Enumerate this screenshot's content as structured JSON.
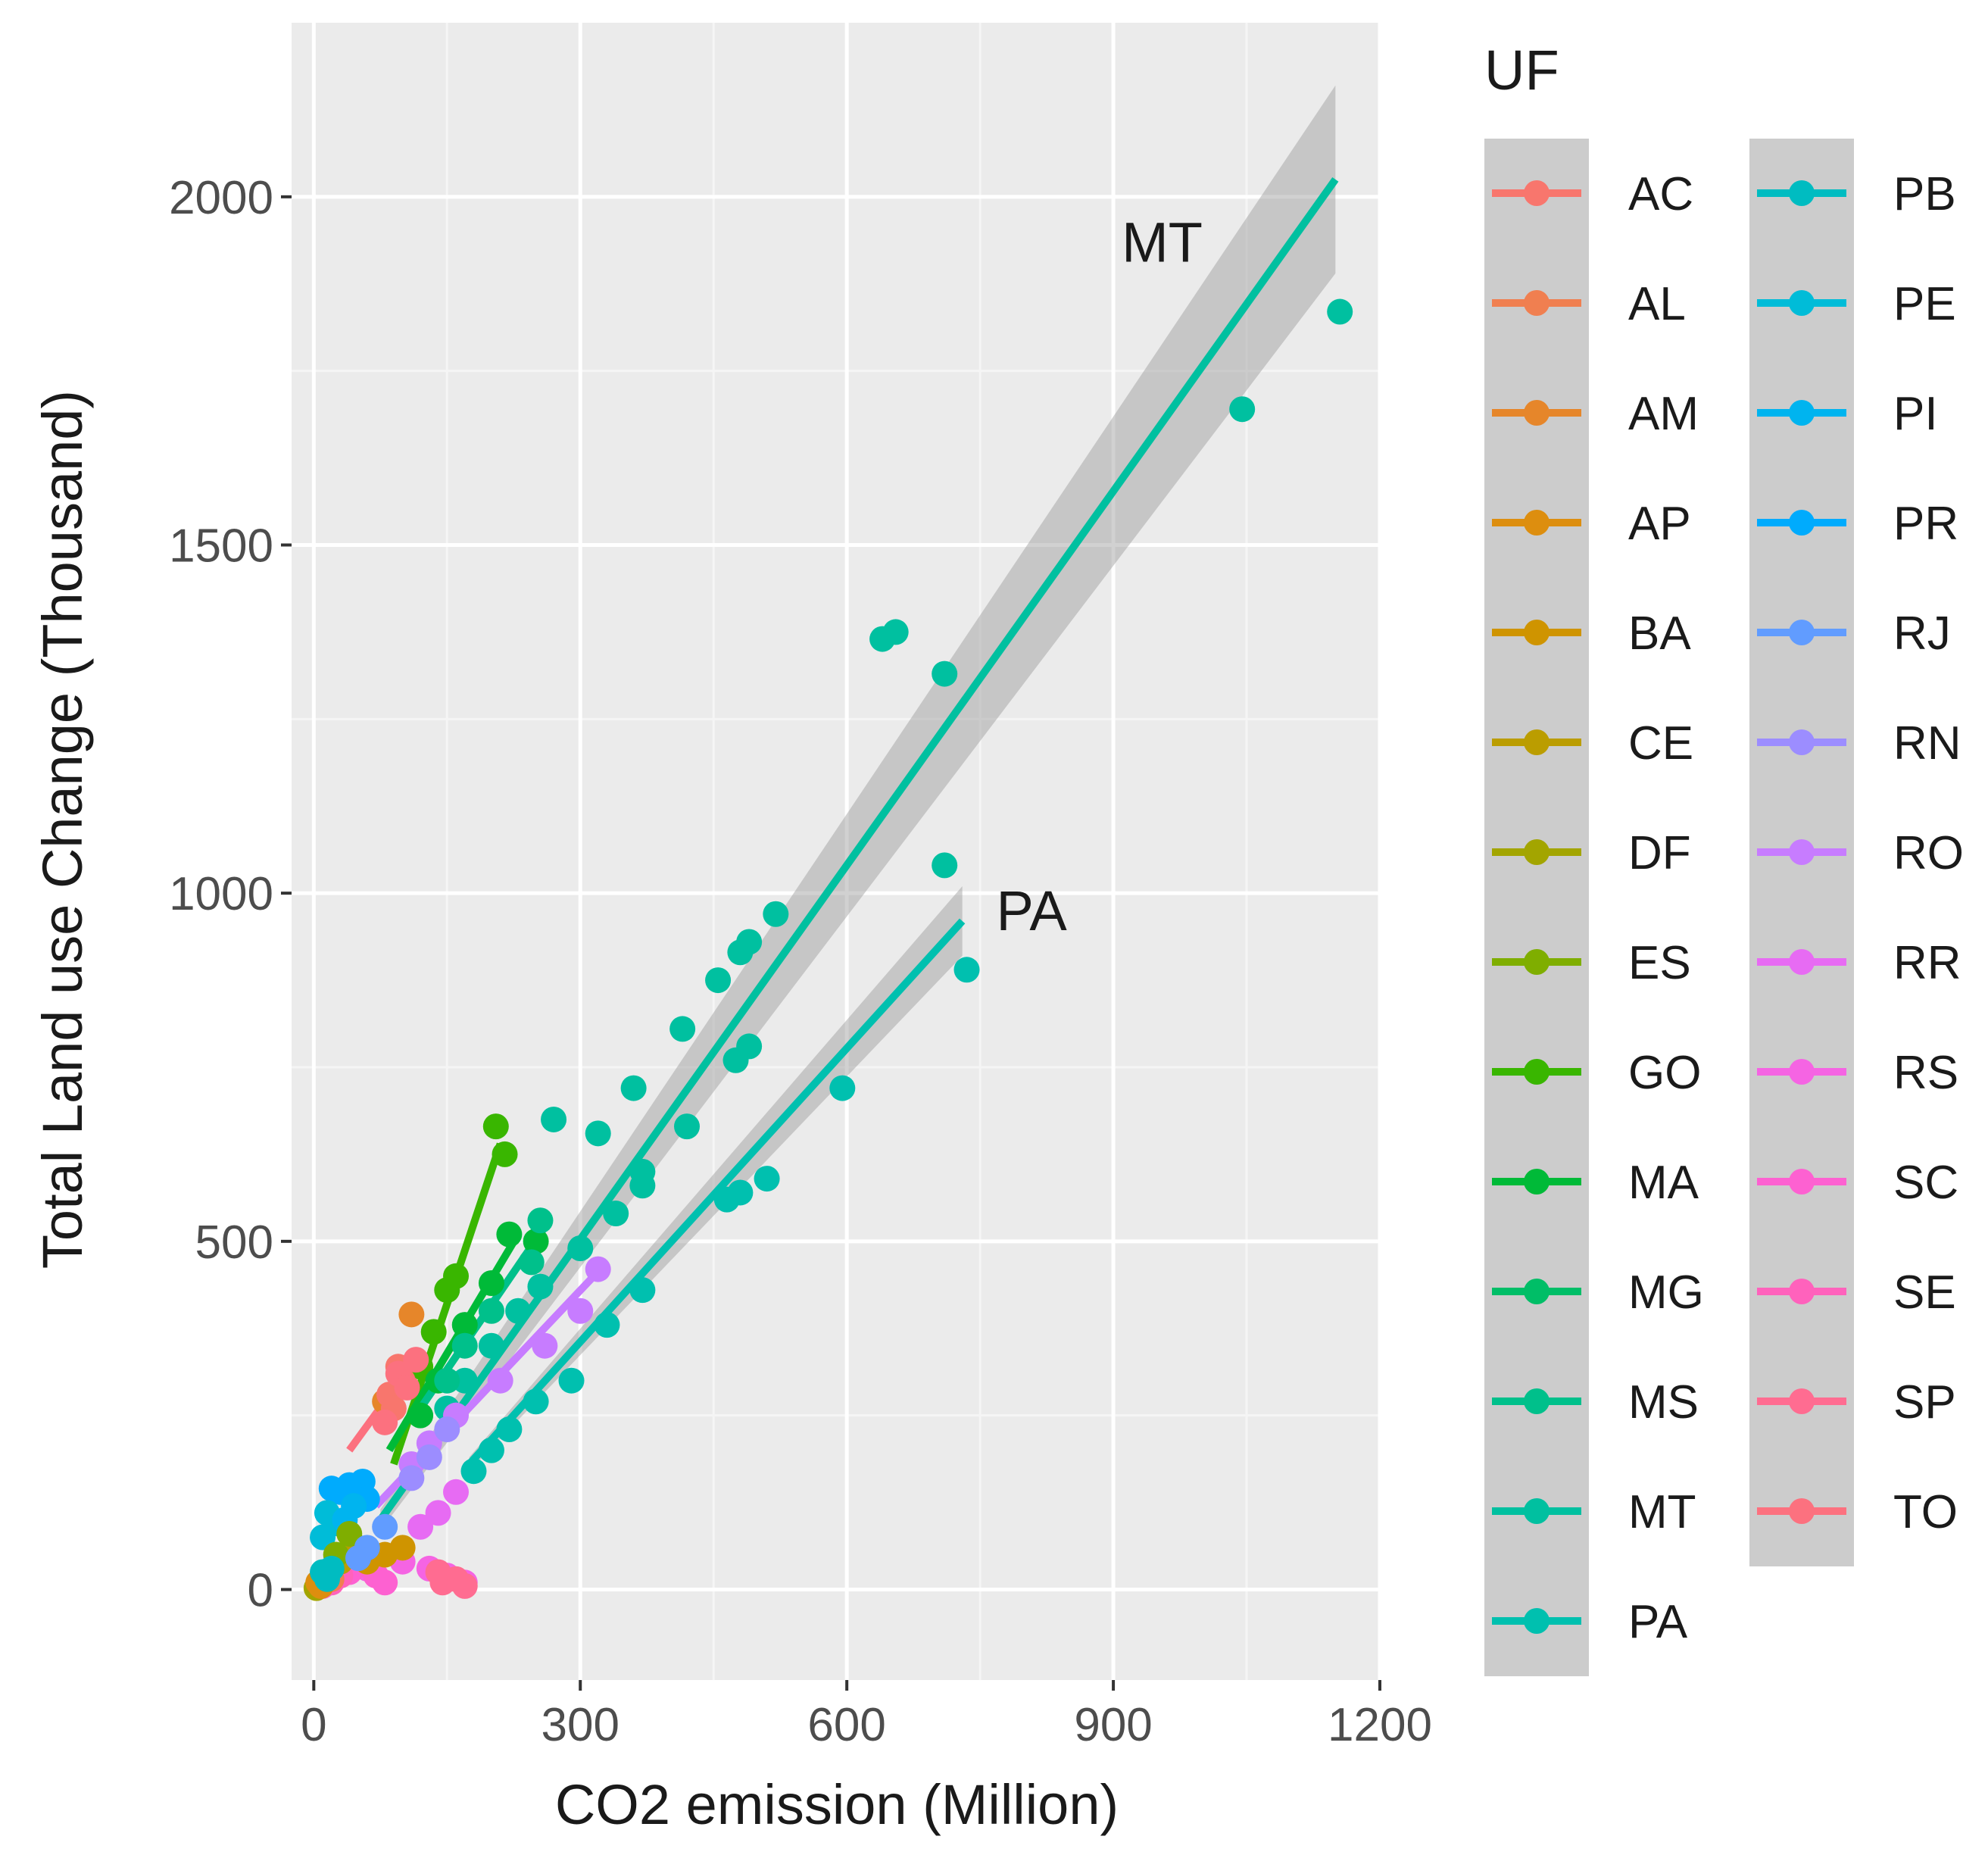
{
  "chart_data": {
    "type": "scatter",
    "title": "",
    "xlabel": "CO2 emission (Million)",
    "ylabel": "Total Land use Change (Thousand)",
    "xlim": [
      -25,
      1200
    ],
    "ylim": [
      -130,
      2250
    ],
    "xticks": [
      0,
      300,
      600,
      900,
      1200
    ],
    "yticks": [
      0,
      500,
      1000,
      1500,
      2000
    ],
    "grid": true,
    "legend": {
      "title": "UF",
      "placement": "right",
      "entries": [
        {
          "name": "AC",
          "color": "#F8766D"
        },
        {
          "name": "AL",
          "color": "#F07F50"
        },
        {
          "name": "AM",
          "color": "#E6862A"
        },
        {
          "name": "AP",
          "color": "#DD8E0F"
        },
        {
          "name": "BA",
          "color": "#CF9400"
        },
        {
          "name": "CE",
          "color": "#BB9D00"
        },
        {
          "name": "DF",
          "color": "#A3A500"
        },
        {
          "name": "ES",
          "color": "#7FAE00"
        },
        {
          "name": "GO",
          "color": "#39B600"
        },
        {
          "name": "MA",
          "color": "#00BA38"
        },
        {
          "name": "MG",
          "color": "#00BE67"
        },
        {
          "name": "MS",
          "color": "#00C08B"
        },
        {
          "name": "MT",
          "color": "#00C0A0"
        },
        {
          "name": "PA",
          "color": "#00C0AF"
        },
        {
          "name": "PB",
          "color": "#00BCC1"
        },
        {
          "name": "PE",
          "color": "#00BCD8"
        },
        {
          "name": "PI",
          "color": "#00B4EF"
        },
        {
          "name": "PR",
          "color": "#00ABFD"
        },
        {
          "name": "RJ",
          "color": "#619CFF"
        },
        {
          "name": "RN",
          "color": "#9C8DFF"
        },
        {
          "name": "RO",
          "color": "#C77CFF"
        },
        {
          "name": "RR",
          "color": "#E76BF3"
        },
        {
          "name": "RS",
          "color": "#F564E3"
        },
        {
          "name": "SC",
          "color": "#FD61D1"
        },
        {
          "name": "SE",
          "color": "#FF62BC"
        },
        {
          "name": "SP",
          "color": "#FF6C91"
        },
        {
          "name": "TO",
          "color": "#FC717F"
        }
      ]
    },
    "annotations": [
      {
        "text": "MT",
        "x": 955,
        "y": 1935
      },
      {
        "text": "PA",
        "x": 808,
        "y": 975
      }
    ],
    "regression": [
      {
        "series": "MT",
        "x": [
          75,
          1150
        ],
        "y": [
          100,
          2025
        ],
        "band_half_width": [
          15,
          135
        ]
      },
      {
        "series": "PA",
        "x": [
          175,
          730
        ],
        "y": [
          180,
          960
        ],
        "band_half_width": [
          10,
          50
        ]
      },
      {
        "series": "GO",
        "x": [
          90,
          210
        ],
        "y": [
          180,
          640
        ]
      },
      {
        "series": "MA",
        "x": [
          85,
          230
        ],
        "y": [
          200,
          510
        ]
      },
      {
        "series": "MS",
        "x": [
          120,
          265
        ],
        "y": [
          260,
          530
        ]
      },
      {
        "series": "RO",
        "x": [
          70,
          330
        ],
        "y": [
          120,
          470
        ]
      },
      {
        "series": "TO",
        "x": [
          40,
          120
        ],
        "y": [
          200,
          340
        ]
      },
      {
        "series": "PR",
        "x": [
          15,
          60
        ],
        "y": [
          140,
          160
        ]
      }
    ],
    "series": [
      {
        "name": "MT",
        "points": [
          [
            1155,
            1835
          ],
          [
            1045,
            1695
          ],
          [
            655,
            1375
          ],
          [
            640,
            1365
          ],
          [
            710,
            1315
          ],
          [
            710,
            1040
          ],
          [
            520,
            970
          ],
          [
            490,
            930
          ],
          [
            480,
            915
          ],
          [
            455,
            875
          ],
          [
            415,
            805
          ],
          [
            490,
            780
          ],
          [
            475,
            760
          ],
          [
            360,
            720
          ],
          [
            420,
            665
          ],
          [
            320,
            655
          ],
          [
            270,
            675
          ],
          [
            370,
            600
          ],
          [
            370,
            580
          ],
          [
            340,
            540
          ],
          [
            300,
            490
          ],
          [
            255,
            435
          ],
          [
            230,
            400
          ],
          [
            200,
            350
          ],
          [
            170,
            300
          ],
          [
            150,
            260
          ]
        ]
      },
      {
        "name": "PA",
        "points": [
          [
            735,
            890
          ],
          [
            595,
            720
          ],
          [
            510,
            590
          ],
          [
            480,
            570
          ],
          [
            465,
            560
          ],
          [
            370,
            430
          ],
          [
            330,
            380
          ],
          [
            290,
            300
          ],
          [
            250,
            270
          ],
          [
            220,
            230
          ],
          [
            200,
            200
          ],
          [
            180,
            170
          ]
        ]
      },
      {
        "name": "GO",
        "points": [
          [
            205,
            665
          ],
          [
            215,
            625
          ],
          [
            160,
            450
          ],
          [
            150,
            430
          ],
          [
            135,
            370
          ],
          [
            120,
            320
          ]
        ]
      },
      {
        "name": "MA",
        "points": [
          [
            220,
            510
          ],
          [
            250,
            500
          ],
          [
            200,
            440
          ],
          [
            170,
            380
          ],
          [
            140,
            300
          ],
          [
            120,
            250
          ]
        ]
      },
      {
        "name": "MS",
        "points": [
          [
            255,
            530
          ],
          [
            245,
            470
          ],
          [
            200,
            400
          ],
          [
            170,
            350
          ],
          [
            150,
            300
          ]
        ]
      },
      {
        "name": "AM",
        "points": [
          [
            110,
            395
          ],
          [
            80,
            270
          ]
        ]
      },
      {
        "name": "AC",
        "points": [
          [
            95,
            320
          ],
          [
            100,
            300
          ],
          [
            85,
            280
          ],
          [
            90,
            260
          ]
        ]
      },
      {
        "name": "TO",
        "points": [
          [
            115,
            330
          ],
          [
            95,
            310
          ],
          [
            105,
            290
          ],
          [
            80,
            240
          ]
        ]
      },
      {
        "name": "RO",
        "points": [
          [
            320,
            460
          ],
          [
            300,
            400
          ],
          [
            260,
            350
          ],
          [
            210,
            300
          ],
          [
            160,
            250
          ],
          [
            130,
            210
          ],
          [
            110,
            180
          ]
        ]
      },
      {
        "name": "RN",
        "points": [
          [
            150,
            230
          ],
          [
            130,
            190
          ],
          [
            110,
            160
          ]
        ]
      },
      {
        "name": "RR",
        "points": [
          [
            160,
            140
          ],
          [
            140,
            110
          ],
          [
            120,
            90
          ]
        ]
      },
      {
        "name": "PR",
        "points": [
          [
            20,
            145
          ],
          [
            40,
            150
          ],
          [
            30,
            140
          ],
          [
            55,
            155
          ],
          [
            60,
            130
          ]
        ]
      },
      {
        "name": "PE",
        "points": [
          [
            15,
            110
          ],
          [
            25,
            95
          ],
          [
            10,
            75
          ]
        ]
      },
      {
        "name": "PI",
        "points": [
          [
            45,
            120
          ],
          [
            35,
            100
          ]
        ]
      },
      {
        "name": "RS",
        "points": [
          [
            150,
            20
          ],
          [
            130,
            30
          ],
          [
            170,
            10
          ],
          [
            100,
            40
          ],
          [
            60,
            30
          ]
        ]
      },
      {
        "name": "SP",
        "points": [
          [
            160,
            15
          ],
          [
            145,
            10
          ],
          [
            170,
            5
          ],
          [
            140,
            25
          ]
        ]
      },
      {
        "name": "SC",
        "points": [
          [
            70,
            20
          ],
          [
            50,
            35
          ],
          [
            80,
            10
          ],
          [
            40,
            25
          ]
        ]
      },
      {
        "name": "SE",
        "points": [
          [
            20,
            10
          ],
          [
            30,
            20
          ],
          [
            10,
            5
          ]
        ]
      },
      {
        "name": "BA",
        "points": [
          [
            100,
            60
          ],
          [
            80,
            50
          ],
          [
            60,
            40
          ]
        ]
      },
      {
        "name": "CE",
        "points": [
          [
            50,
            60
          ],
          [
            30,
            40
          ]
        ]
      },
      {
        "name": "ES",
        "points": [
          [
            40,
            80
          ],
          [
            25,
            50
          ]
        ]
      },
      {
        "name": "DF",
        "points": [
          [
            5,
            5
          ],
          [
            8,
            10
          ],
          [
            3,
            2
          ]
        ]
      },
      {
        "name": "AL",
        "points": [
          [
            15,
            20
          ],
          [
            20,
            15
          ],
          [
            10,
            10
          ]
        ]
      },
      {
        "name": "AP",
        "points": [
          [
            5,
            10
          ],
          [
            10,
            20
          ],
          [
            8,
            5
          ]
        ]
      },
      {
        "name": "PB",
        "points": [
          [
            10,
            25
          ],
          [
            20,
            30
          ],
          [
            15,
            15
          ]
        ]
      },
      {
        "name": "RJ",
        "points": [
          [
            60,
            60
          ],
          [
            80,
            90
          ],
          [
            50,
            45
          ]
        ]
      }
    ]
  }
}
